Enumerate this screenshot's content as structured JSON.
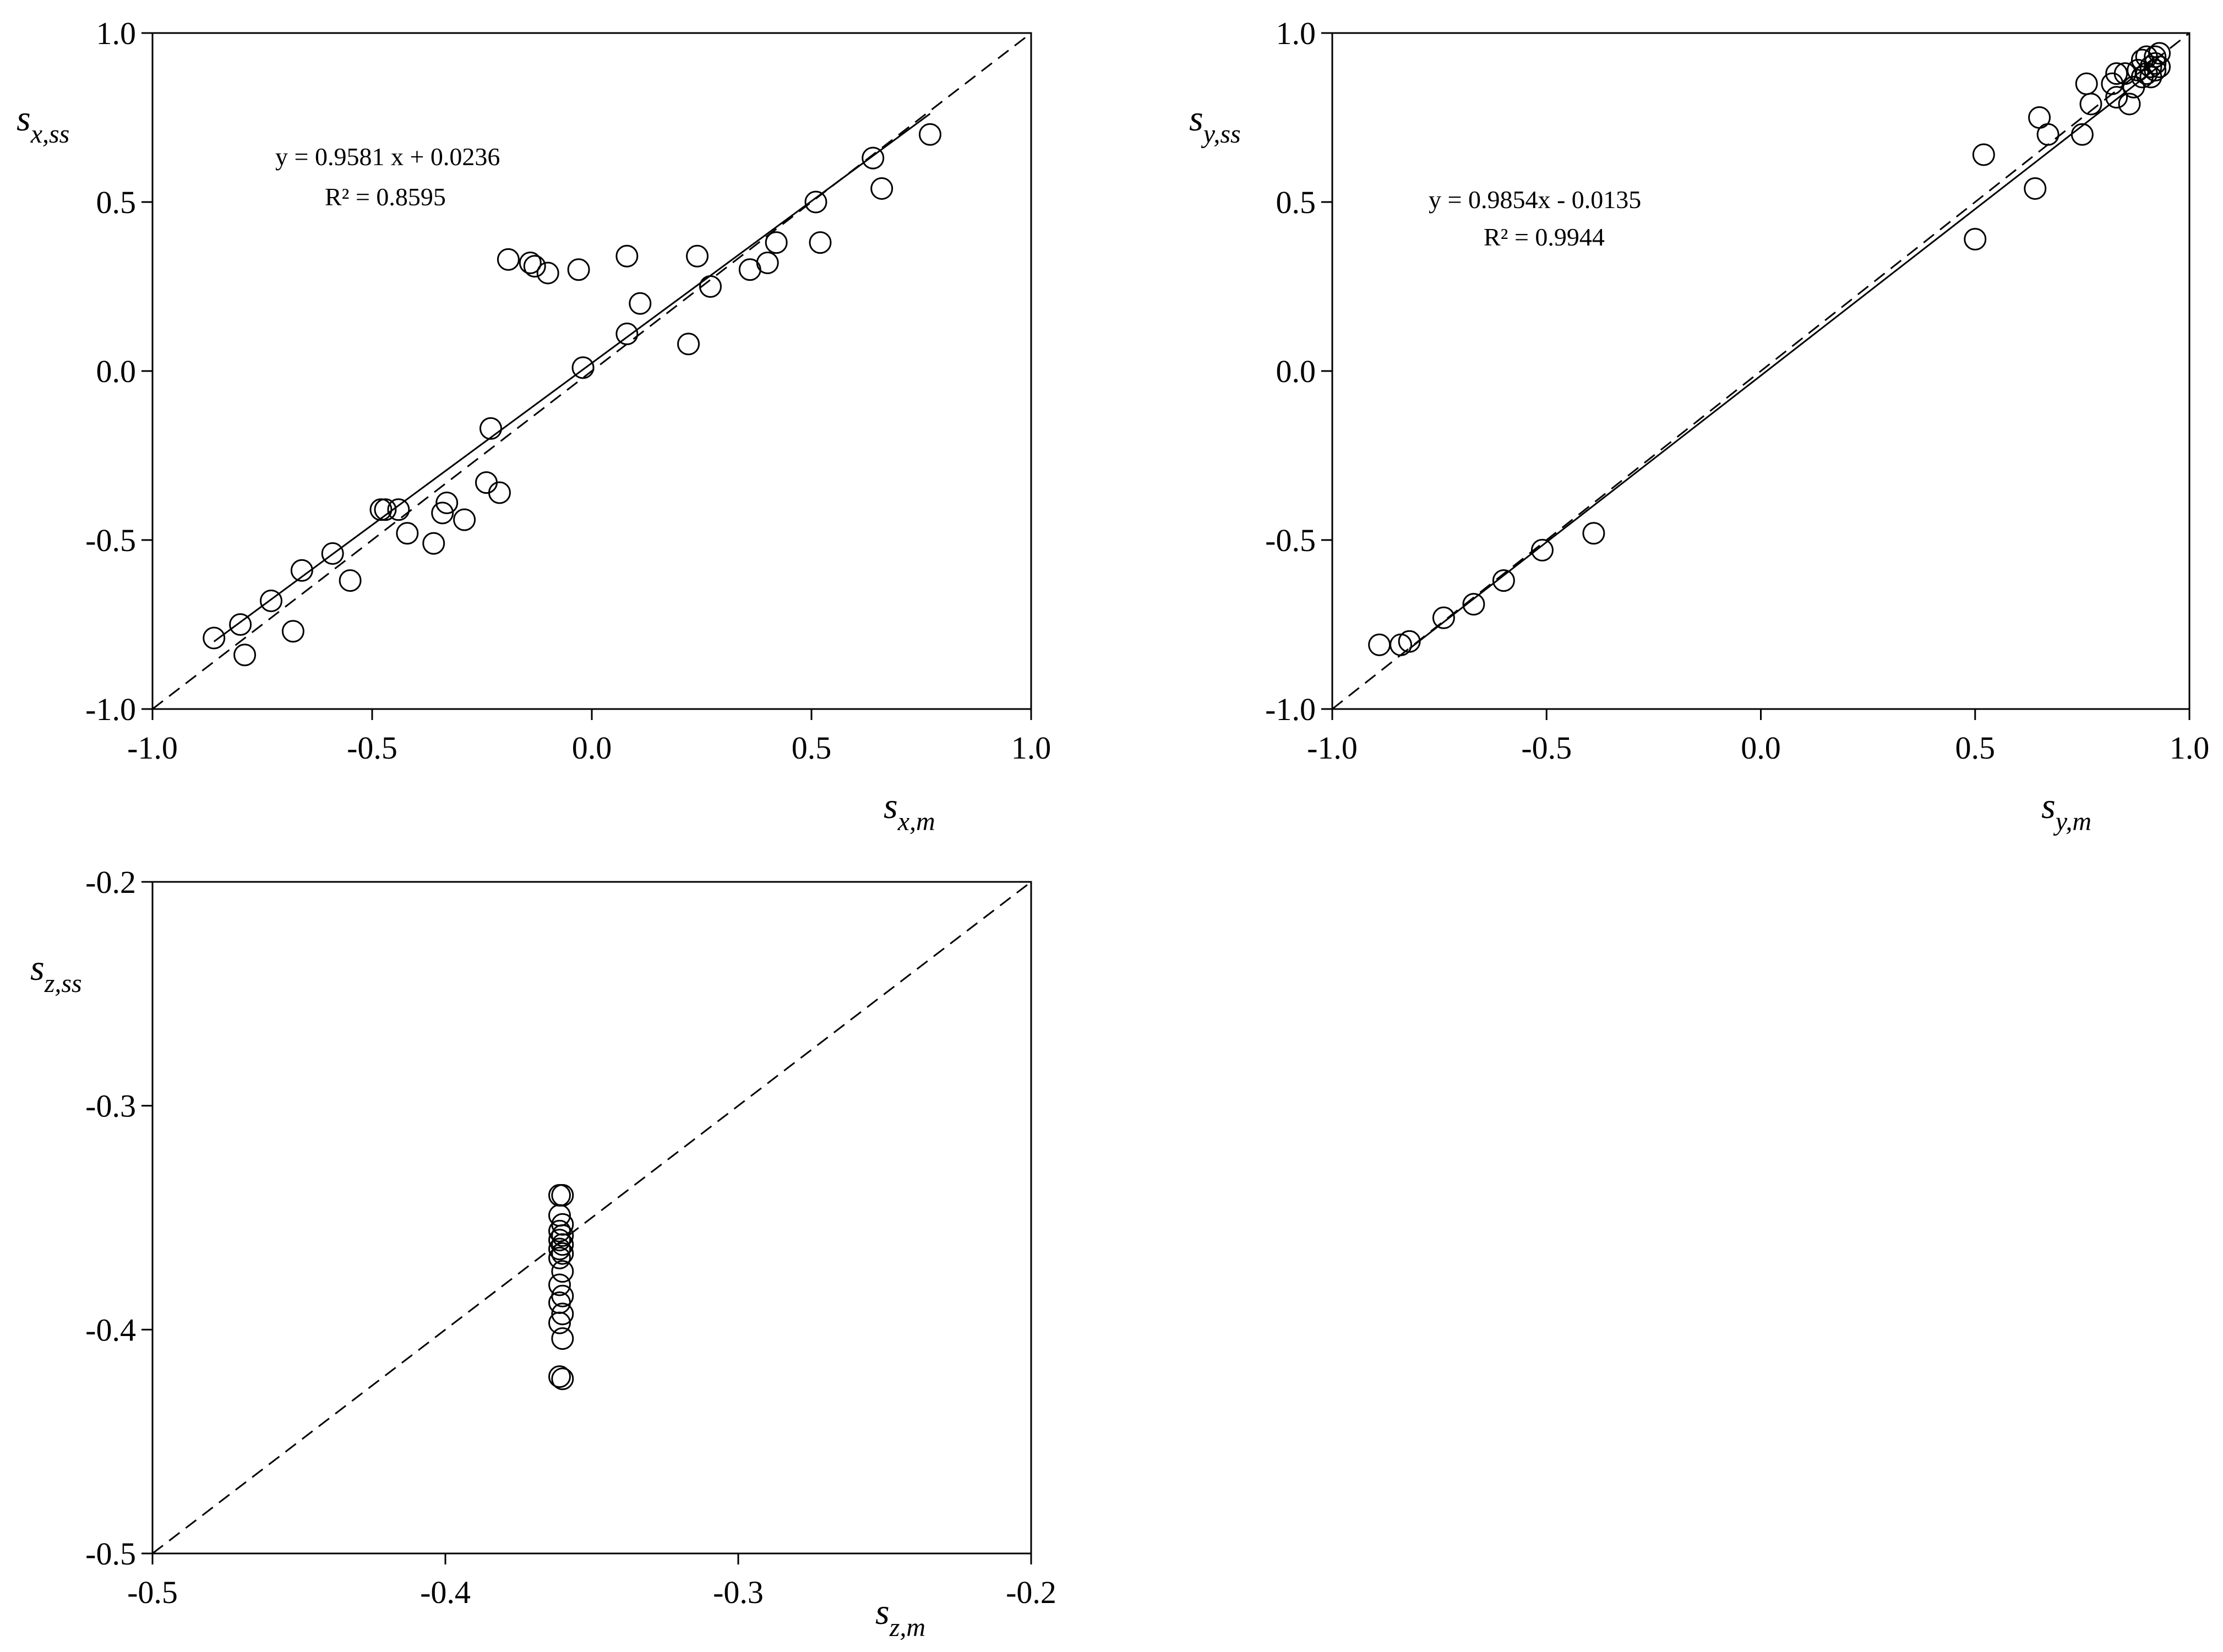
{
  "chart_data": [
    {
      "id": "sx",
      "type": "scatter",
      "xlabel": {
        "base": "s",
        "sub": "x,m"
      },
      "ylabel": {
        "base": "s",
        "sub": "x,ss"
      },
      "xlim": [
        -1.0,
        1.0
      ],
      "ylim": [
        -1.0,
        1.0
      ],
      "xticks": [
        "-1.0",
        "-0.5",
        "0.0",
        "0.5",
        "1.0"
      ],
      "yticks": [
        "-1.0",
        "-0.5",
        "0.0",
        "0.5",
        "1.0"
      ],
      "grid": false,
      "identity_line": true,
      "regression": {
        "slope": 0.9581,
        "intercept": 0.0236,
        "x_range": [
          -0.86,
          0.77
        ]
      },
      "annotation": {
        "equation": "y = 0.9581 x + 0.0236",
        "r2": "R² = 0.8595"
      },
      "points": [
        [
          -0.86,
          -0.79
        ],
        [
          -0.8,
          -0.75
        ],
        [
          -0.79,
          -0.84
        ],
        [
          -0.73,
          -0.68
        ],
        [
          -0.68,
          -0.77
        ],
        [
          -0.66,
          -0.59
        ],
        [
          -0.59,
          -0.54
        ],
        [
          -0.55,
          -0.62
        ],
        [
          -0.48,
          -0.41
        ],
        [
          -0.47,
          -0.41
        ],
        [
          -0.44,
          -0.41
        ],
        [
          -0.42,
          -0.48
        ],
        [
          -0.36,
          -0.51
        ],
        [
          -0.34,
          -0.42
        ],
        [
          -0.33,
          -0.39
        ],
        [
          -0.29,
          -0.44
        ],
        [
          -0.24,
          -0.33
        ],
        [
          -0.23,
          -0.17
        ],
        [
          -0.21,
          -0.36
        ],
        [
          -0.19,
          0.33
        ],
        [
          -0.14,
          0.32
        ],
        [
          -0.13,
          0.31
        ],
        [
          -0.1,
          0.29
        ],
        [
          -0.03,
          0.3
        ],
        [
          -0.02,
          0.01
        ],
        [
          0.08,
          0.11
        ],
        [
          0.08,
          0.34
        ],
        [
          0.11,
          0.2
        ],
        [
          0.22,
          0.08
        ],
        [
          0.24,
          0.34
        ],
        [
          0.27,
          0.25
        ],
        [
          0.36,
          0.3
        ],
        [
          0.4,
          0.32
        ],
        [
          0.42,
          0.38
        ],
        [
          0.51,
          0.5
        ],
        [
          0.52,
          0.38
        ],
        [
          0.64,
          0.63
        ],
        [
          0.66,
          0.54
        ],
        [
          0.77,
          0.7
        ]
      ]
    },
    {
      "id": "sy",
      "type": "scatter",
      "xlabel": {
        "base": "s",
        "sub": "y,m"
      },
      "ylabel": {
        "base": "s",
        "sub": "y,ss"
      },
      "xlim": [
        -1.0,
        1.0
      ],
      "ylim": [
        -1.0,
        1.0
      ],
      "xticks": [
        "-1.0",
        "-0.5",
        "0.0",
        "0.5",
        "1.0"
      ],
      "yticks": [
        "-1.0",
        "-0.5",
        "0.0",
        "0.5",
        "1.0"
      ],
      "grid": false,
      "identity_line": true,
      "regression": {
        "slope": 0.9854,
        "intercept": -0.0135,
        "x_range": [
          -0.82,
          0.93
        ]
      },
      "annotation": {
        "equation": "y = 0.9854x  - 0.0135",
        "r2": "R² = 0.9944"
      },
      "points": [
        [
          -0.89,
          -0.81
        ],
        [
          -0.84,
          -0.81
        ],
        [
          -0.82,
          -0.8
        ],
        [
          -0.74,
          -0.73
        ],
        [
          -0.67,
          -0.69
        ],
        [
          -0.6,
          -0.62
        ],
        [
          -0.51,
          -0.53
        ],
        [
          -0.39,
          -0.48
        ],
        [
          0.5,
          0.39
        ],
        [
          0.52,
          0.64
        ],
        [
          0.64,
          0.54
        ],
        [
          0.65,
          0.75
        ],
        [
          0.67,
          0.7
        ],
        [
          0.75,
          0.7
        ],
        [
          0.76,
          0.85
        ],
        [
          0.77,
          0.79
        ],
        [
          0.82,
          0.85
        ],
        [
          0.83,
          0.88
        ],
        [
          0.83,
          0.81
        ],
        [
          0.85,
          0.88
        ],
        [
          0.86,
          0.79
        ],
        [
          0.87,
          0.84
        ],
        [
          0.88,
          0.89
        ],
        [
          0.89,
          0.92
        ],
        [
          0.89,
          0.87
        ],
        [
          0.9,
          0.93
        ],
        [
          0.9,
          0.88
        ],
        [
          0.91,
          0.9
        ],
        [
          0.91,
          0.87
        ],
        [
          0.92,
          0.91
        ],
        [
          0.92,
          0.93
        ],
        [
          0.93,
          0.94
        ],
        [
          0.93,
          0.9
        ],
        [
          0.92,
          0.89
        ]
      ]
    },
    {
      "id": "sz",
      "type": "scatter",
      "xlabel": {
        "base": "s",
        "sub": "z,m"
      },
      "ylabel": {
        "base": "s",
        "sub": "z,ss"
      },
      "xlim": [
        -0.5,
        -0.2
      ],
      "ylim": [
        -0.5,
        -0.2
      ],
      "xticks": [
        "-0.5",
        "-0.4",
        "-0.3",
        "-0.2"
      ],
      "yticks": [
        "-0.5",
        "-0.4",
        "-0.3",
        "-0.2"
      ],
      "grid": false,
      "identity_line": true,
      "points": [
        [
          -0.361,
          -0.34
        ],
        [
          -0.36,
          -0.34
        ],
        [
          -0.361,
          -0.349
        ],
        [
          -0.36,
          -0.353
        ],
        [
          -0.361,
          -0.356
        ],
        [
          -0.36,
          -0.358
        ],
        [
          -0.361,
          -0.36
        ],
        [
          -0.36,
          -0.362
        ],
        [
          -0.361,
          -0.364
        ],
        [
          -0.36,
          -0.366
        ],
        [
          -0.361,
          -0.368
        ],
        [
          -0.36,
          -0.374
        ],
        [
          -0.361,
          -0.38
        ],
        [
          -0.36,
          -0.385
        ],
        [
          -0.361,
          -0.388
        ],
        [
          -0.36,
          -0.393
        ],
        [
          -0.361,
          -0.397
        ],
        [
          -0.36,
          -0.404
        ],
        [
          -0.361,
          -0.421
        ],
        [
          -0.36,
          -0.422
        ]
      ]
    }
  ]
}
